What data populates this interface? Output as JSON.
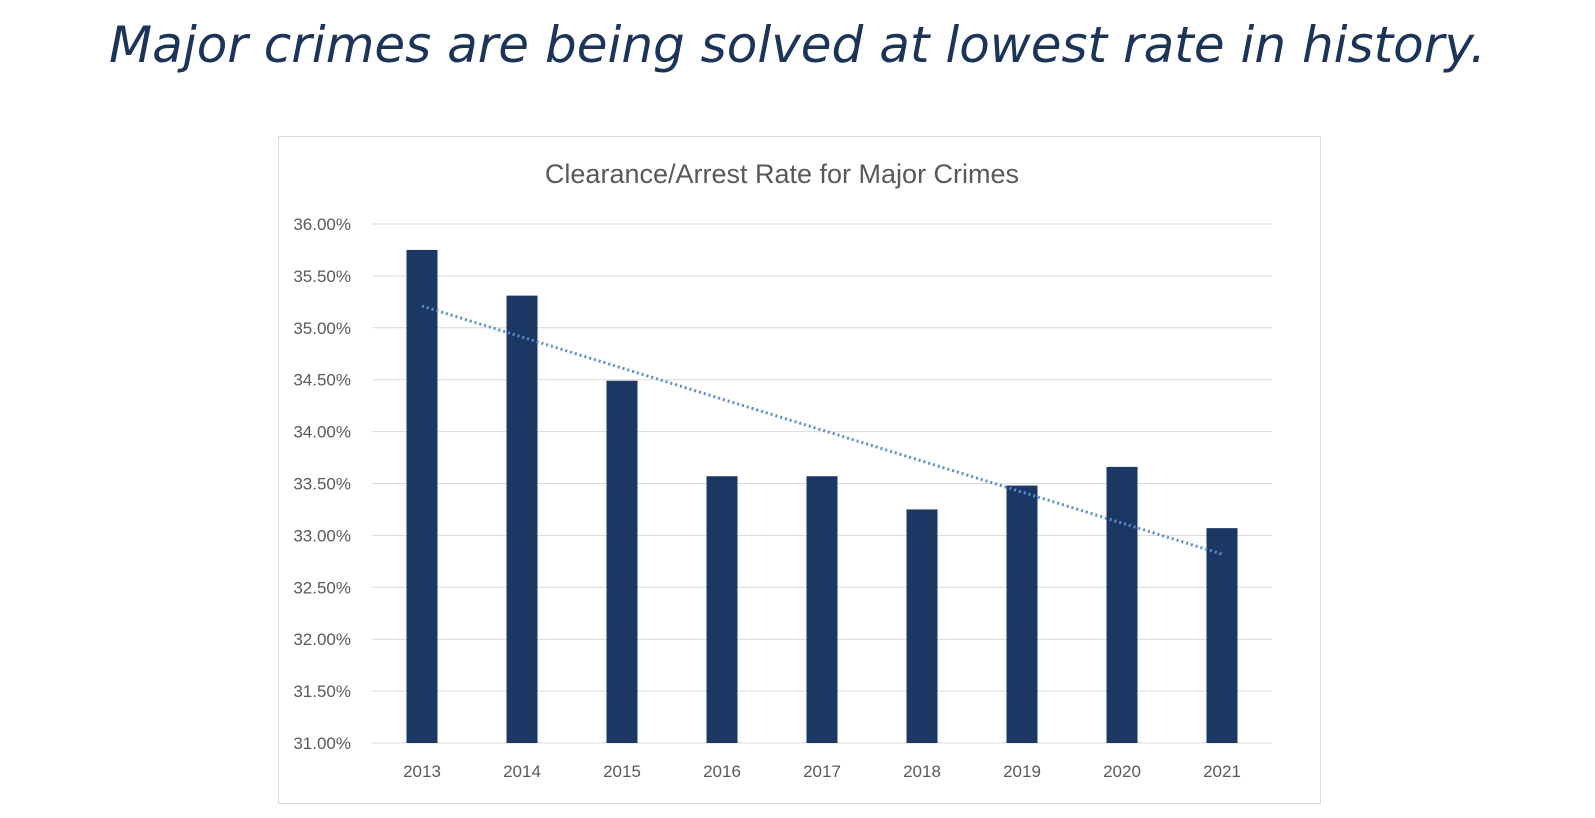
{
  "headline": "Major crimes are being solved at lowest rate in history.",
  "colors": {
    "headline": "#1b3458",
    "bar": "#1b3763",
    "trendline": "#5b8ed0",
    "grid": "#d9d9d9",
    "text": "#595959"
  },
  "chart_data": {
    "type": "bar",
    "title": "Clearance/Arrest Rate for Major Crimes",
    "xlabel": "",
    "ylabel": "",
    "categories": [
      "2013",
      "2014",
      "2015",
      "2016",
      "2017",
      "2018",
      "2019",
      "2020",
      "2021"
    ],
    "values": [
      35.75,
      35.31,
      34.49,
      33.57,
      33.57,
      33.25,
      33.48,
      33.66,
      33.07
    ],
    "ylim": [
      31.0,
      36.0
    ],
    "yticks": [
      31.0,
      31.5,
      32.0,
      32.5,
      33.0,
      33.5,
      34.0,
      34.5,
      35.0,
      35.5,
      36.0
    ],
    "ytick_labels": [
      "31.00%",
      "31.50%",
      "32.00%",
      "32.50%",
      "33.00%",
      "33.50%",
      "34.00%",
      "34.50%",
      "35.00%",
      "35.50%",
      "36.00%"
    ],
    "grid": true,
    "legend": "none",
    "trendline": {
      "type": "linear",
      "style": "dotted",
      "start": 35.21,
      "end": 32.82
    }
  }
}
